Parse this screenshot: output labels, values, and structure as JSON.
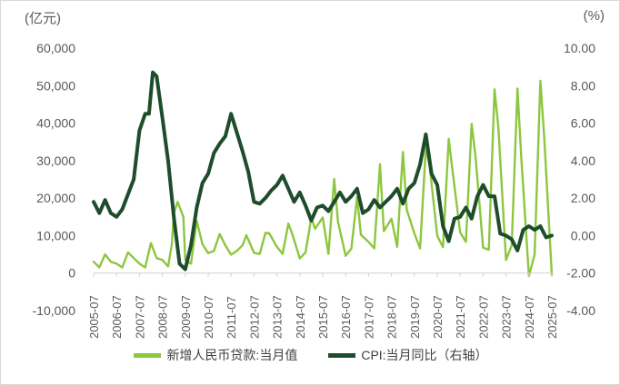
{
  "chart_data": {
    "type": "line",
    "x_tick_labels": [
      "2005-07",
      "2006-07",
      "2007-07",
      "2008-07",
      "2009-07",
      "2010-07",
      "2011-07",
      "2012-07",
      "2013-07",
      "2014-07",
      "2015-07",
      "2016-07",
      "2017-07",
      "2018-07",
      "2019-07",
      "2020-07",
      "2021-07",
      "2022-07",
      "2023-07",
      "2024-07",
      "2025-07"
    ],
    "left_axis": {
      "unit": "(亿元)",
      "ylim": [
        -10000,
        60000
      ],
      "ticks": [
        "-10,000",
        "0",
        "10,000",
        "20,000",
        "30,000",
        "40,000",
        "50,000",
        "60,000"
      ]
    },
    "right_axis": {
      "unit": "(%)",
      "ylim": [
        -4,
        10
      ],
      "ticks": [
        "-4.00",
        "-2.00",
        "0.00",
        "2.00",
        "4.00",
        "6.00",
        "8.00",
        "10.00"
      ]
    },
    "grid": false,
    "legend_position": "bottom",
    "series": [
      {
        "name": "新增人民币贷款:当月值",
        "axis": "left",
        "color": "#8dc63f",
        "x": [
          "2005-07",
          "2005-10",
          "2006-01",
          "2006-04",
          "2006-07",
          "2006-10",
          "2007-01",
          "2007-04",
          "2007-07",
          "2007-10",
          "2008-01",
          "2008-04",
          "2008-07",
          "2008-10",
          "2008-12",
          "2009-01",
          "2009-03",
          "2009-06",
          "2009-07",
          "2009-10",
          "2010-01",
          "2010-04",
          "2010-07",
          "2010-10",
          "2011-01",
          "2011-04",
          "2011-07",
          "2011-10",
          "2012-01",
          "2012-03",
          "2012-07",
          "2012-10",
          "2013-01",
          "2013-03",
          "2013-07",
          "2013-10",
          "2014-01",
          "2014-03",
          "2014-07",
          "2014-10",
          "2015-01",
          "2015-03",
          "2015-07",
          "2015-10",
          "2016-01",
          "2016-03",
          "2016-07",
          "2016-10",
          "2017-01",
          "2017-03",
          "2017-07",
          "2017-10",
          "2018-01",
          "2018-03",
          "2018-07",
          "2018-10",
          "2019-01",
          "2019-03",
          "2019-07",
          "2019-10",
          "2020-01",
          "2020-03",
          "2020-07",
          "2020-10",
          "2021-01",
          "2021-03",
          "2021-07",
          "2021-10",
          "2022-01",
          "2022-03",
          "2022-07",
          "2022-10",
          "2023-01",
          "2023-03",
          "2023-07",
          "2023-10",
          "2024-01",
          "2024-03",
          "2024-07",
          "2024-10",
          "2025-01",
          "2025-03",
          "2025-07"
        ],
        "values": [
          3000,
          1500,
          5000,
          3000,
          2500,
          1500,
          5500,
          4000,
          2500,
          1500,
          8000,
          4000,
          3500,
          1800,
          7700,
          16000,
          19000,
          15000,
          3500,
          2500,
          13900,
          7700,
          5300,
          5900,
          10400,
          7400,
          4900,
          5900,
          7400,
          10100,
          5400,
          5100,
          10700,
          10600,
          7000,
          5100,
          13200,
          10500,
          3900,
          5500,
          14700,
          11800,
          14800,
          5100,
          25100,
          13700,
          4600,
          6500,
          20300,
          10200,
          8300,
          6600,
          29000,
          11200,
          14500,
          7000,
          32300,
          16900,
          10600,
          6600,
          33400,
          28500,
          9900,
          6900,
          35800,
          27300,
          10800,
          8300,
          39800,
          31300,
          6800,
          6200,
          49000,
          38900,
          3500,
          7400,
          49200,
          30900,
          -800,
          5000,
          51300,
          36400,
          -500
        ]
      },
      {
        "name": "CPI:当月同比（右轴）",
        "axis": "right",
        "color": "#1e4d2b",
        "x": [
          "2005-07",
          "2005-10",
          "2006-01",
          "2006-04",
          "2006-07",
          "2006-10",
          "2007-01",
          "2007-04",
          "2007-07",
          "2007-10",
          "2007-12",
          "2008-02",
          "2008-04",
          "2008-07",
          "2008-10",
          "2009-01",
          "2009-04",
          "2009-07",
          "2009-10",
          "2010-01",
          "2010-04",
          "2010-07",
          "2010-10",
          "2011-01",
          "2011-04",
          "2011-07",
          "2011-10",
          "2012-01",
          "2012-04",
          "2012-07",
          "2012-10",
          "2013-01",
          "2013-04",
          "2013-07",
          "2013-10",
          "2014-01",
          "2014-04",
          "2014-07",
          "2014-10",
          "2015-01",
          "2015-04",
          "2015-07",
          "2015-10",
          "2016-01",
          "2016-04",
          "2016-07",
          "2016-10",
          "2017-01",
          "2017-04",
          "2017-07",
          "2017-10",
          "2018-01",
          "2018-04",
          "2018-07",
          "2018-10",
          "2019-01",
          "2019-04",
          "2019-07",
          "2019-10",
          "2020-01",
          "2020-04",
          "2020-07",
          "2020-10",
          "2021-01",
          "2021-04",
          "2021-07",
          "2021-10",
          "2022-01",
          "2022-04",
          "2022-07",
          "2022-10",
          "2023-01",
          "2023-04",
          "2023-07",
          "2023-10",
          "2024-01",
          "2024-04",
          "2024-07",
          "2024-10",
          "2025-01",
          "2025-04",
          "2025-07"
        ],
        "values": [
          1.8,
          1.2,
          1.9,
          1.2,
          1.0,
          1.4,
          2.2,
          3.0,
          5.6,
          6.5,
          6.5,
          8.7,
          8.5,
          6.3,
          4.0,
          1.0,
          -1.5,
          -1.8,
          -0.5,
          1.5,
          2.8,
          3.3,
          4.4,
          4.9,
          5.3,
          6.5,
          5.5,
          4.5,
          3.4,
          1.8,
          1.7,
          2.0,
          2.4,
          2.7,
          3.2,
          2.5,
          1.8,
          2.3,
          1.6,
          0.8,
          1.5,
          1.6,
          1.3,
          1.8,
          2.3,
          1.8,
          2.1,
          2.5,
          1.2,
          1.4,
          1.9,
          1.5,
          1.8,
          2.1,
          2.5,
          1.7,
          2.5,
          2.8,
          3.8,
          5.4,
          3.3,
          2.7,
          0.5,
          -0.3,
          0.9,
          1.0,
          1.5,
          0.9,
          2.1,
          2.7,
          2.1,
          2.1,
          0.1,
          0.0,
          -0.2,
          -0.8,
          0.3,
          0.5,
          0.3,
          0.5,
          -0.1,
          0.0
        ]
      }
    ]
  }
}
